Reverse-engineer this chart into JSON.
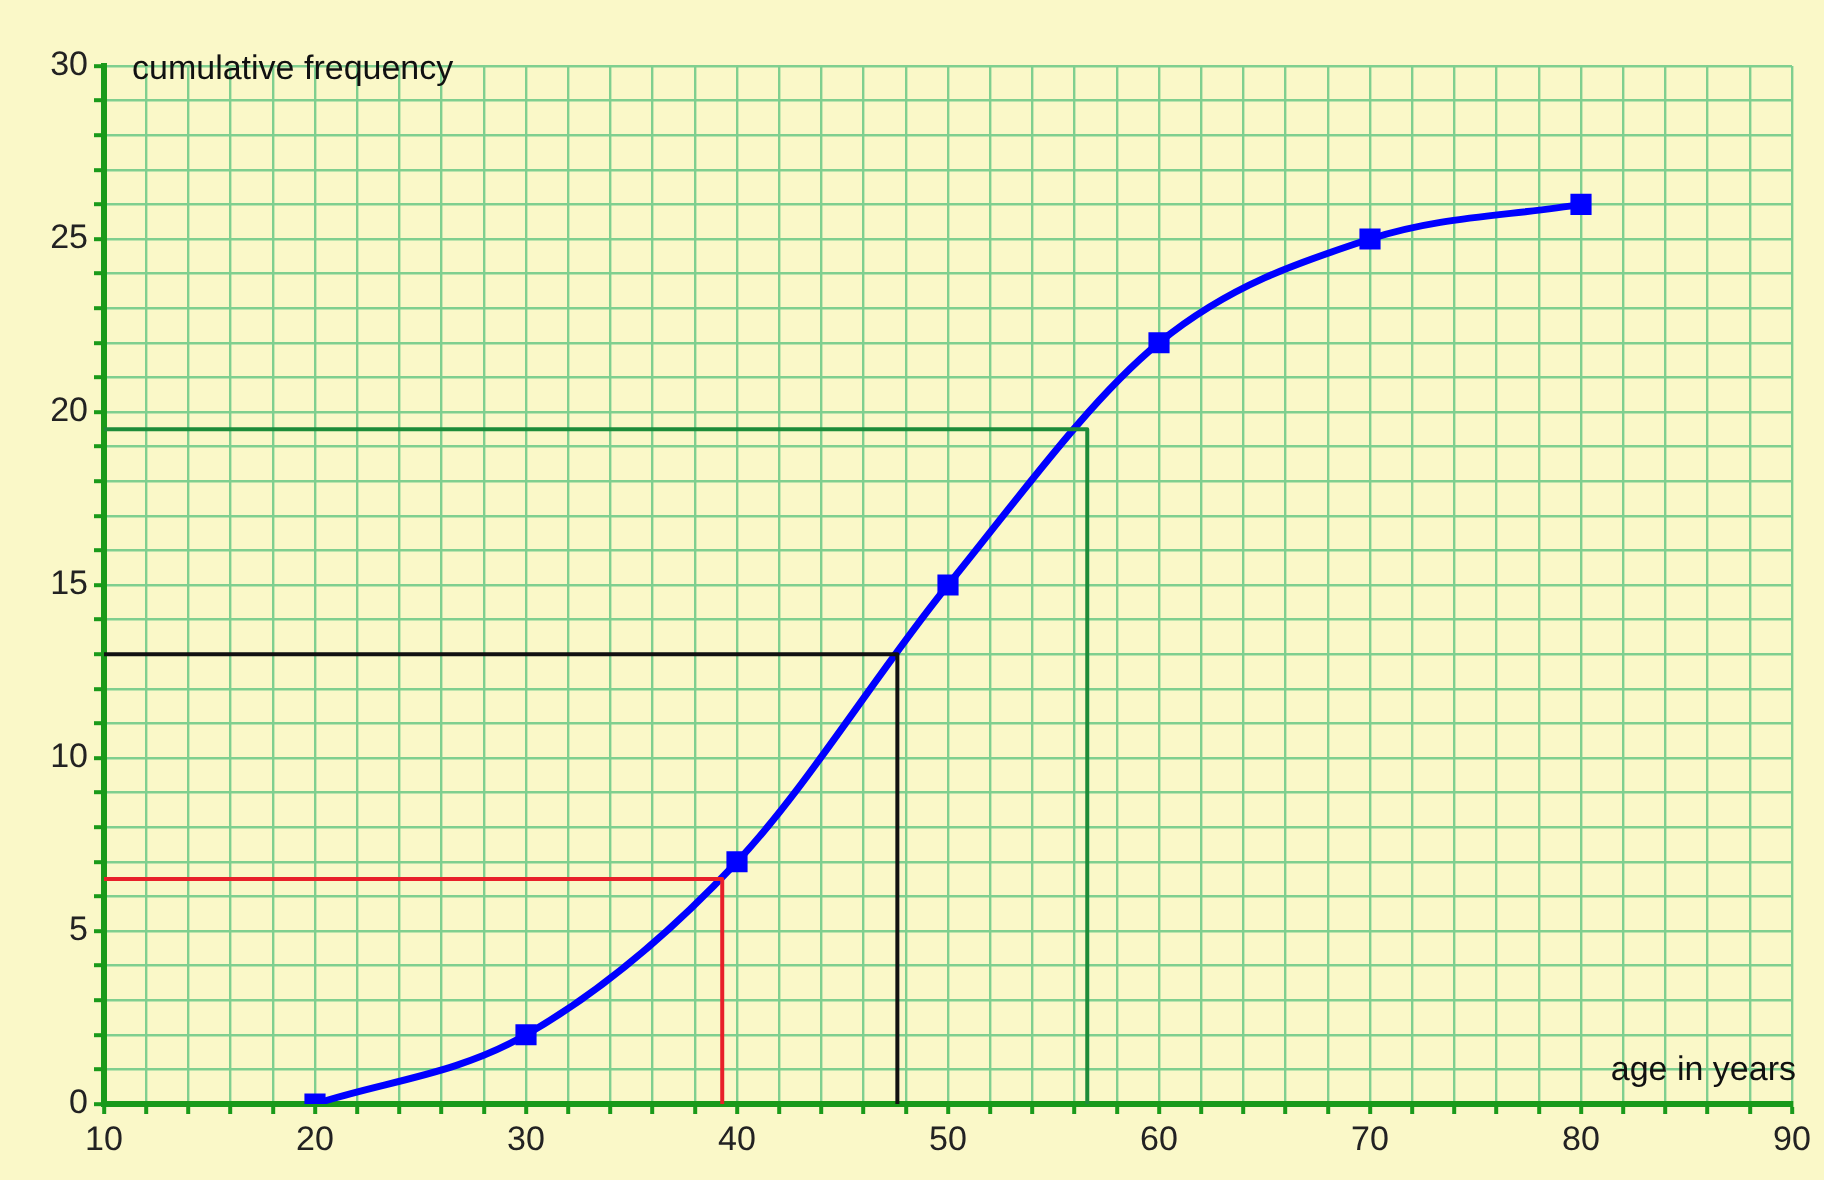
{
  "chart_data": {
    "type": "line",
    "xlabel": "age in years",
    "ylabel": "cumulative frequency",
    "xlim": [
      10,
      90
    ],
    "ylim": [
      0,
      30
    ],
    "xticks": [
      10,
      {
        "value": 12,
        "label": null
      },
      {
        "value": 14,
        "label": null
      },
      {
        "value": 16,
        "label": null
      },
      {
        "value": 18,
        "label": null
      },
      20,
      {
        "value": 22,
        "label": null
      },
      {
        "value": 24,
        "label": null
      },
      {
        "value": 26,
        "label": null
      },
      {
        "value": 28,
        "label": null
      },
      30,
      {
        "value": 32,
        "label": null
      },
      {
        "value": 34,
        "label": null
      },
      {
        "value": 36,
        "label": null
      },
      {
        "value": 38,
        "label": null
      },
      40,
      {
        "value": 42,
        "label": null
      },
      {
        "value": 44,
        "label": null
      },
      {
        "value": 46,
        "label": null
      },
      {
        "value": 48,
        "label": null
      },
      50,
      {
        "value": 52,
        "label": null
      },
      {
        "value": 54,
        "label": null
      },
      {
        "value": 56,
        "label": null
      },
      {
        "value": 58,
        "label": null
      },
      60,
      {
        "value": 62,
        "label": null
      },
      {
        "value": 64,
        "label": null
      },
      {
        "value": 66,
        "label": null
      },
      {
        "value": 68,
        "label": null
      },
      70,
      {
        "value": 72,
        "label": null
      },
      {
        "value": 74,
        "label": null
      },
      {
        "value": 76,
        "label": null
      },
      {
        "value": 78,
        "label": null
      },
      80,
      {
        "value": 82,
        "label": null
      },
      {
        "value": 84,
        "label": null
      },
      {
        "value": 86,
        "label": null
      },
      {
        "value": 88,
        "label": null
      },
      90
    ],
    "yticks": [
      0,
      {
        "value": 1,
        "label": null
      },
      {
        "value": 2,
        "label": null
      },
      {
        "value": 3,
        "label": null
      },
      {
        "value": 4,
        "label": null
      },
      5,
      {
        "value": 6,
        "label": null
      },
      {
        "value": 7,
        "label": null
      },
      {
        "value": 8,
        "label": null
      },
      {
        "value": 9,
        "label": null
      },
      10,
      {
        "value": 11,
        "label": null
      },
      {
        "value": 12,
        "label": null
      },
      {
        "value": 13,
        "label": null
      },
      {
        "value": 14,
        "label": null
      },
      15,
      {
        "value": 16,
        "label": null
      },
      {
        "value": 17,
        "label": null
      },
      {
        "value": 18,
        "label": null
      },
      {
        "value": 19,
        "label": null
      },
      20,
      {
        "value": 21,
        "label": null
      },
      {
        "value": 22,
        "label": null
      },
      {
        "value": 23,
        "label": null
      },
      {
        "value": 24,
        "label": null
      },
      25,
      {
        "value": 26,
        "label": null
      },
      {
        "value": 27,
        "label": null
      },
      {
        "value": 28,
        "label": null
      },
      {
        "value": 29,
        "label": null
      },
      30
    ],
    "grid": true,
    "legend": false,
    "series": [
      {
        "color": "#0000ff",
        "marker": "square",
        "x": [
          20,
          30,
          40,
          50,
          60,
          70,
          80
        ],
        "values": [
          0,
          2,
          7,
          15,
          22,
          25,
          26
        ]
      },
      {
        "color": "#e8202a",
        "marker": "none",
        "x": [
          10,
          39.3,
          39.3
        ],
        "values": [
          6.5,
          6.5,
          0
        ]
      },
      {
        "color": "#111111",
        "marker": "none",
        "x": [
          10,
          47.6,
          47.6
        ],
        "values": [
          13,
          13,
          0
        ]
      },
      {
        "color": "#1e8c3a",
        "marker": "none",
        "x": [
          10,
          56.6,
          56.6
        ],
        "values": [
          19.5,
          19.5,
          0
        ]
      }
    ]
  }
}
